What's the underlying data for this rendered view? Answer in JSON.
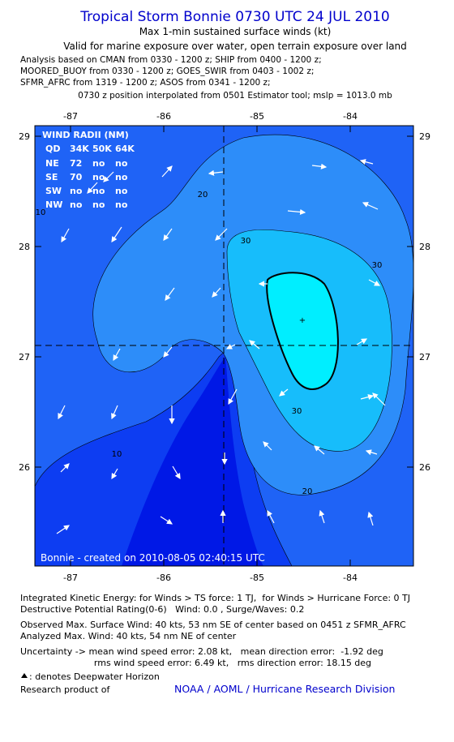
{
  "header": {
    "title": "Tropical Storm Bonnie 0730 UTC 24 JUL 2010",
    "subtitle": "Max 1-min sustained surface winds (kt)",
    "valid": "Valid for marine exposure over water, open terrain exposure over land",
    "analysis": [
      "Analysis based on CMAN from 0330 - 1200 z; SHIP from 0400 - 1200 z;",
      "MOORED_BUOY from 0330 - 1200 z; GOES_SWIR from 0403 - 1002 z;",
      "SFMR_AFRC from 1319 - 1200 z; ASOS from 0341 - 1200 z;"
    ],
    "position": "0730 z position interpolated from 0501 Estimator tool; mslp = 1013.0 mb"
  },
  "map": {
    "xticks": [
      -87,
      -86,
      -85,
      -84
    ],
    "yticks": [
      29,
      28,
      27,
      26
    ],
    "contour_labels": [
      20,
      30,
      30,
      30,
      20,
      10,
      10
    ],
    "wind_radii": {
      "title": "WIND RADII (NM)",
      "header": [
        "QD",
        "34K",
        "50K",
        "64K"
      ],
      "rows": [
        [
          "NE",
          "72",
          "no",
          "no"
        ],
        [
          "SE",
          "70",
          "no",
          "no"
        ],
        [
          "SW",
          "no",
          "no",
          "no"
        ],
        [
          "NW",
          "no",
          "no",
          "no"
        ]
      ]
    },
    "credit": "Bonnie - created on 2010-08-05 02:40:15 UTC"
  },
  "footer": {
    "lines": [
      "Integrated Kinetic Energy: for Winds > TS force: 1 TJ,  for Winds > Hurricane Force: 0 TJ",
      "Destructive Potential Rating(0-6)   Wind: 0.0 , Surge/Waves: 0.2",
      "Observed Max. Surface Wind: 40 kts, 53 nm SE of center based on 0451 z SFMR_AFRC",
      "Analyzed Max. Wind: 40 kts, 54 nm NE of center",
      "Uncertainty -> mean wind speed error: 2.08 kt,   mean direction error:  -1.92 deg",
      "                          rms wind speed error: 6.49 kt,   rms direction error: 18.15 deg"
    ],
    "legend": ": denotes Deepwater Horizon",
    "research": "Research product of",
    "link": "NOAA / AOML / Hurricane Research Division"
  }
}
